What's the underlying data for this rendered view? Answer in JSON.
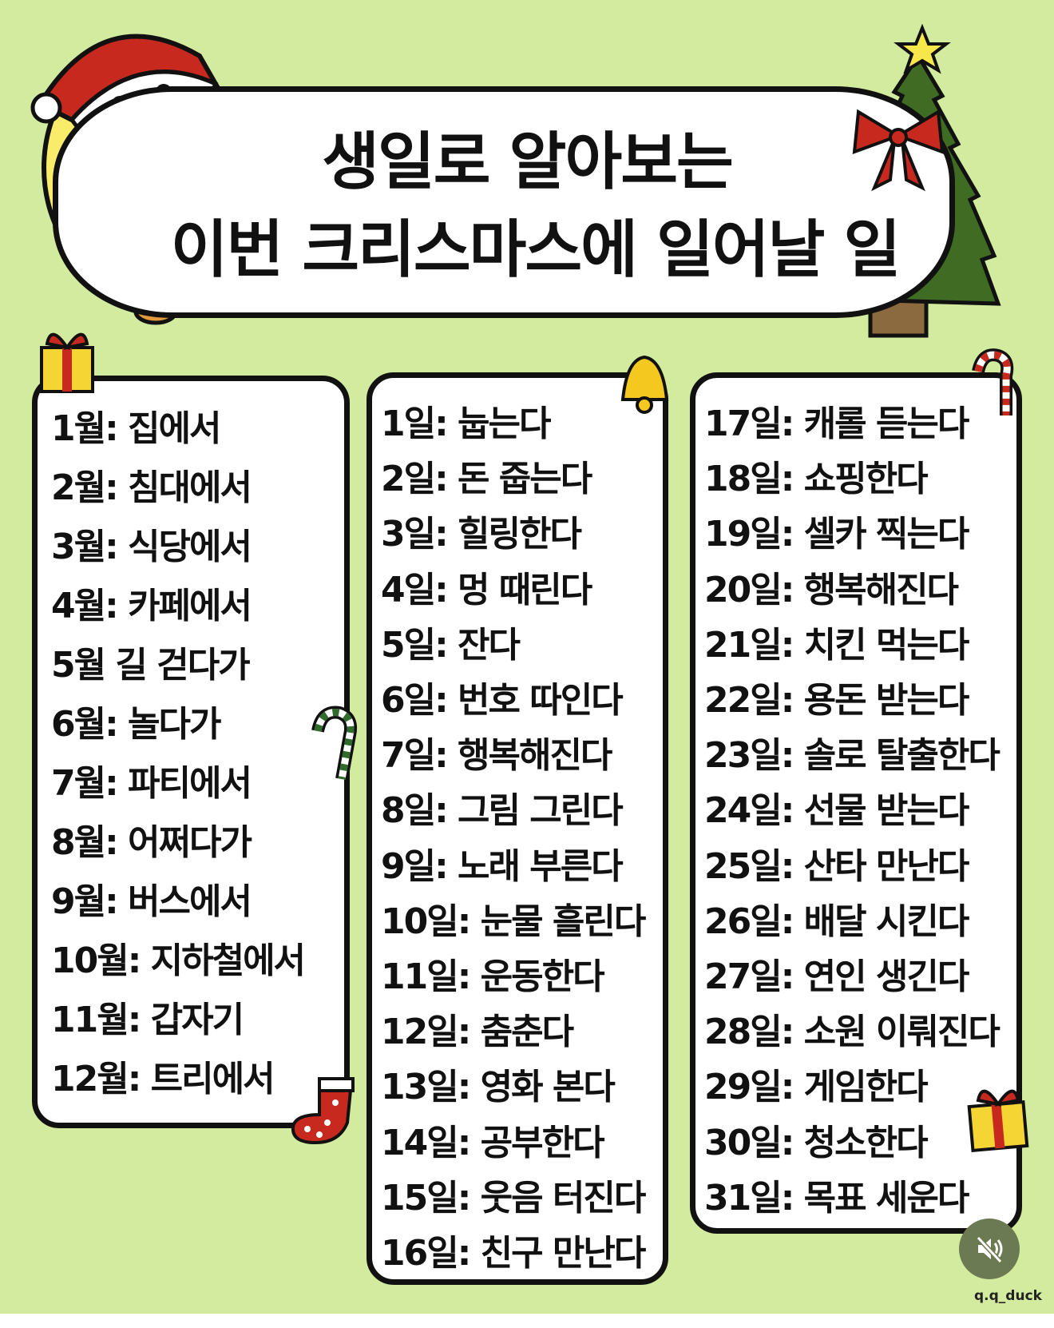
{
  "title": {
    "line1": "생일로 알아보는",
    "line2": "이번 크리스마스에 일어날 일"
  },
  "months": [
    "1월: 집에서",
    "2월: 침대에서",
    "3월: 식당에서",
    "4월: 카페에서",
    "5월 길 걷다가",
    "6월: 놀다가",
    "7월: 파티에서",
    "8월: 어쩌다가",
    "9월: 버스에서",
    "10월: 지하철에서",
    "11월: 갑자기",
    "12월: 트리에서"
  ],
  "days_a": [
    "1일: 눕는다",
    "2일: 돈 줍는다",
    "3일: 힐링한다",
    "4일: 멍 때린다",
    "5일: 잔다",
    "6일: 번호 따인다",
    "7일: 행복해진다",
    "8일: 그림 그린다",
    "9일: 노래 부른다",
    "10일: 눈물 흘린다",
    "11일: 운동한다",
    "12일: 춤춘다",
    "13일: 영화 본다",
    "14일: 공부한다",
    "15일: 웃음 터진다",
    "16일: 친구 만난다"
  ],
  "days_b": [
    "17일: 캐롤 듣는다",
    "18일: 쇼핑한다",
    "19일: 셀카 찍는다",
    "20일: 행복해진다",
    "21일: 치킨 먹는다",
    "22일: 용돈 받는다",
    "23일: 솔로 탈출한다",
    "24일: 선물 받는다",
    "25일: 산타 만난다",
    "26일: 배달 시킨다",
    "27일: 연인 생긴다",
    "28일: 소원 이뤄진다",
    "29일: 게임한다",
    "30일: 청소한다",
    "31일: 목표 세운다"
  ],
  "credit": "q.q_duck",
  "mute_icon": "speaker-muted-icon",
  "colors": {
    "background": "#d3eb9e",
    "red": "#c8291f",
    "tree": "#3f6b22",
    "chick": "#f8ec6a"
  }
}
